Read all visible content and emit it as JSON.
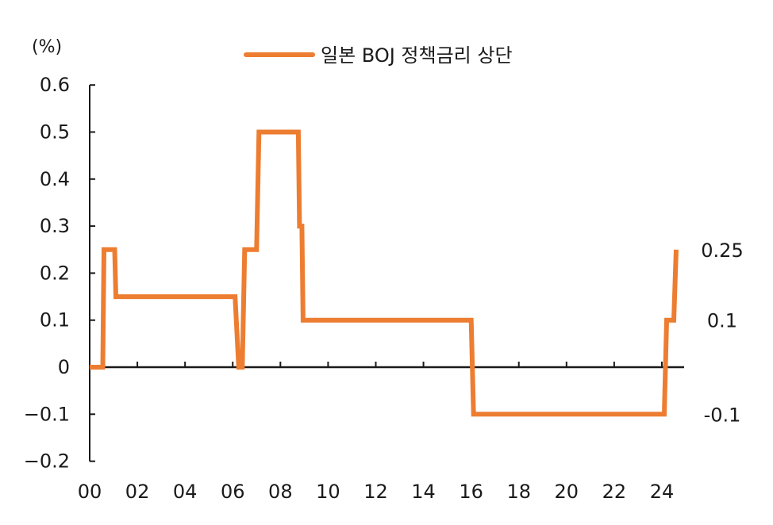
{
  "chart_data": {
    "type": "line",
    "ylabel": "(%)",
    "ylim": [
      -0.2,
      0.6
    ],
    "yticks": [
      "0.6",
      "0.5",
      "0.4",
      "0.3",
      "0.2",
      "0.1",
      "0",
      "−0.1",
      "−0.2"
    ],
    "ytick_values": [
      0.6,
      0.5,
      0.4,
      0.3,
      0.2,
      0.1,
      0,
      -0.1,
      -0.2
    ],
    "xlim": [
      2000,
      2024.7
    ],
    "xticks": [
      "00",
      "02",
      "04",
      "06",
      "08",
      "10",
      "12",
      "14",
      "16",
      "18",
      "20",
      "22",
      "24"
    ],
    "xtick_values": [
      2000,
      2002,
      2004,
      2006,
      2008,
      2010,
      2012,
      2014,
      2016,
      2018,
      2020,
      2022,
      2024
    ],
    "legend_position": "top",
    "grid": false,
    "series": [
      {
        "name": "일본 BOJ 정책금리 상단",
        "color": "#ED7D31",
        "x": [
          2000.0,
          2000.55,
          2000.6,
          2001.05,
          2001.1,
          2006.1,
          2006.25,
          2006.4,
          2006.5,
          2007.0,
          2007.1,
          2008.75,
          2008.8,
          2008.9,
          2008.95,
          2016.0,
          2016.1,
          2024.1,
          2024.2,
          2024.5,
          2024.6
        ],
        "y": [
          0,
          0,
          0.25,
          0.25,
          0.15,
          0.15,
          0,
          0,
          0.25,
          0.25,
          0.5,
          0.5,
          0.3,
          0.3,
          0.1,
          0.1,
          -0.1,
          -0.1,
          0.1,
          0.1,
          0.25
        ]
      }
    ],
    "annotations": [
      {
        "text": "0.25",
        "y": 0.25
      },
      {
        "text": "0.1",
        "y": 0.1
      },
      {
        "text": "-0.1",
        "y": -0.1
      }
    ]
  }
}
